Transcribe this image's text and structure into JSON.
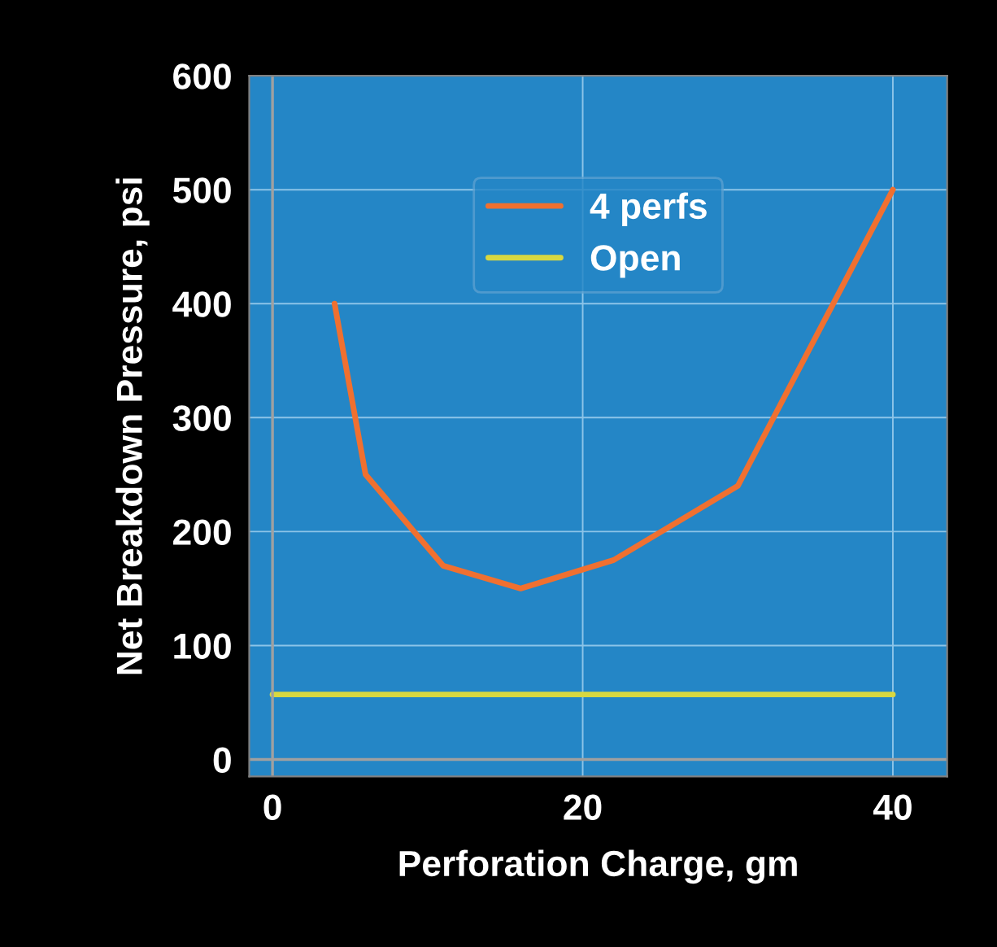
{
  "chart_data": {
    "type": "line",
    "xlabel": "Perforation Charge, gm",
    "ylabel": "Net Breakdown Pressure, psi",
    "series": [
      {
        "name": "4 perfs",
        "color": "#f07030",
        "x": [
          4,
          6,
          11,
          16,
          22,
          30,
          40
        ],
        "values": [
          400,
          250,
          170,
          150,
          175,
          240,
          500
        ]
      },
      {
        "name": "Open",
        "color": "#d8d840",
        "x": [
          0,
          40
        ],
        "values": [
          57,
          57
        ]
      }
    ],
    "xlim": [
      -1.5,
      43.5
    ],
    "ylim": [
      -15,
      600
    ],
    "xticks": [
      0,
      20,
      40
    ],
    "yticks": [
      0,
      100,
      200,
      300,
      400,
      500,
      600
    ],
    "grid": true,
    "legend": "top",
    "marker": "none",
    "line_style": "solid"
  }
}
